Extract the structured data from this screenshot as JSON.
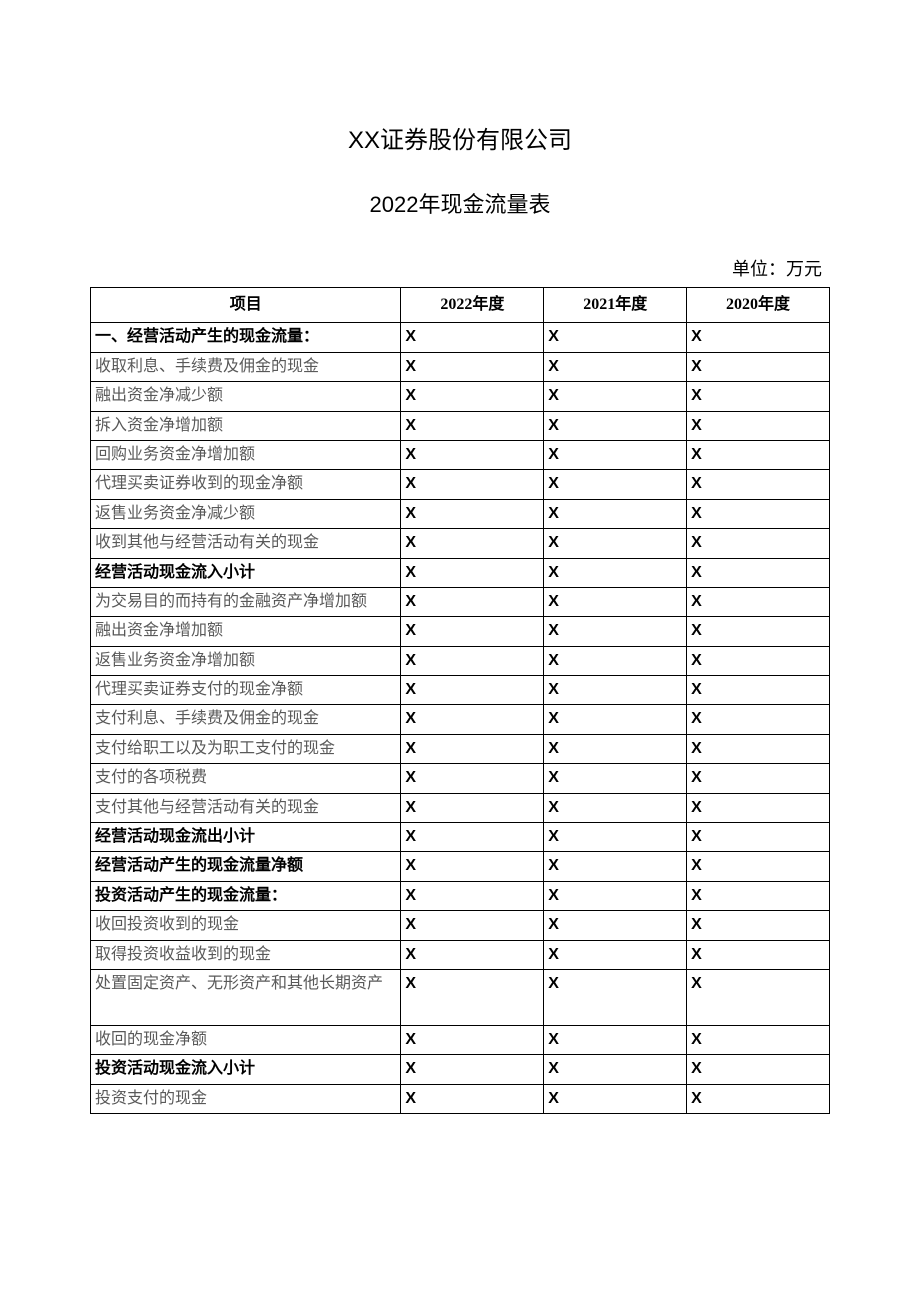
{
  "header": {
    "company": "XX证券股份有限公司",
    "report_title": "2022年现金流量表",
    "unit_label": "单位：万元"
  },
  "table": {
    "columns": [
      "项目",
      "2022年度",
      "2021年度",
      "2020年度"
    ],
    "column_widths_pct": [
      42,
      19.33,
      19.33,
      19.33
    ],
    "header_font_weight": "bold",
    "border_color": "#000000",
    "normal_text_color": "#595959",
    "bold_text_color": "#000000",
    "value_text": "X",
    "rows": [
      {
        "item": "一、经营活动产生的现金流量：",
        "bold": true,
        "v": [
          "X",
          "X",
          "X"
        ]
      },
      {
        "item": "收取利息、手续费及佣金的现金",
        "bold": false,
        "v": [
          "X",
          "X",
          "X"
        ]
      },
      {
        "item": "融出资金净减少额",
        "bold": false,
        "v": [
          "X",
          "X",
          "X"
        ]
      },
      {
        "item": "拆入资金净增加额",
        "bold": false,
        "v": [
          "X",
          "X",
          "X"
        ]
      },
      {
        "item": "回购业务资金净增加额",
        "bold": false,
        "v": [
          "X",
          "X",
          "X"
        ]
      },
      {
        "item": "代理买卖证券收到的现金净额",
        "bold": false,
        "v": [
          "X",
          "X",
          "X"
        ]
      },
      {
        "item": "返售业务资金净减少额",
        "bold": false,
        "v": [
          "X",
          "X",
          "X"
        ]
      },
      {
        "item": "收到其他与经营活动有关的现金",
        "bold": false,
        "v": [
          "X",
          "X",
          "X"
        ]
      },
      {
        "item": "经营活动现金流入小计",
        "bold": true,
        "v": [
          "X",
          "X",
          "X"
        ]
      },
      {
        "item": "为交易目的而持有的金融资产净增加额",
        "bold": false,
        "v": [
          "X",
          "X",
          "X"
        ]
      },
      {
        "item": "融出资金净增加额",
        "bold": false,
        "v": [
          "X",
          "X",
          "X"
        ]
      },
      {
        "item": "返售业务资金净增加额",
        "bold": false,
        "v": [
          "X",
          "X",
          "X"
        ]
      },
      {
        "item": "代理买卖证券支付的现金净额",
        "bold": false,
        "v": [
          "X",
          "X",
          "X"
        ]
      },
      {
        "item": "支付利息、手续费及佣金的现金",
        "bold": false,
        "v": [
          "X",
          "X",
          "X"
        ]
      },
      {
        "item": "支付给职工以及为职工支付的现金",
        "bold": false,
        "v": [
          "X",
          "X",
          "X"
        ]
      },
      {
        "item": "支付的各项税费",
        "bold": false,
        "v": [
          "X",
          "X",
          "X"
        ]
      },
      {
        "item": "支付其他与经营活动有关的现金",
        "bold": false,
        "v": [
          "X",
          "X",
          "X"
        ]
      },
      {
        "item": "经营活动现金流出小计",
        "bold": true,
        "v": [
          "X",
          "X",
          "X"
        ]
      },
      {
        "item": "经营活动产生的现金流量净额",
        "bold": true,
        "v": [
          "X",
          "X",
          "X"
        ]
      },
      {
        "item": "投资活动产生的现金流量：",
        "bold": true,
        "v": [
          "X",
          "X",
          "X"
        ]
      },
      {
        "item": "收回投资收到的现金",
        "bold": false,
        "v": [
          "X",
          "X",
          "X"
        ]
      },
      {
        "item": "取得投资收益收到的现金",
        "bold": false,
        "v": [
          "X",
          "X",
          "X"
        ]
      },
      {
        "item": "处置固定资产、无形资产和其他长期资产",
        "bold": false,
        "v": [
          "X",
          "X",
          "X"
        ],
        "tall": true
      },
      {
        "item": "收回的现金净额",
        "bold": false,
        "v": [
          "X",
          "X",
          "X"
        ]
      },
      {
        "item": "投资活动现金流入小计",
        "bold": true,
        "v": [
          "X",
          "X",
          "X"
        ]
      },
      {
        "item": "投资支付的现金",
        "bold": false,
        "v": [
          "X",
          "X",
          "X"
        ]
      }
    ]
  },
  "styling": {
    "page_background": "#ffffff",
    "title_fontsize": 24,
    "subtitle_fontsize": 22,
    "unit_fontsize": 18,
    "cell_fontsize": 16,
    "title_fontfamily": "SimHei",
    "body_fontfamily": "SimSun",
    "value_fontfamily": "Arial"
  }
}
